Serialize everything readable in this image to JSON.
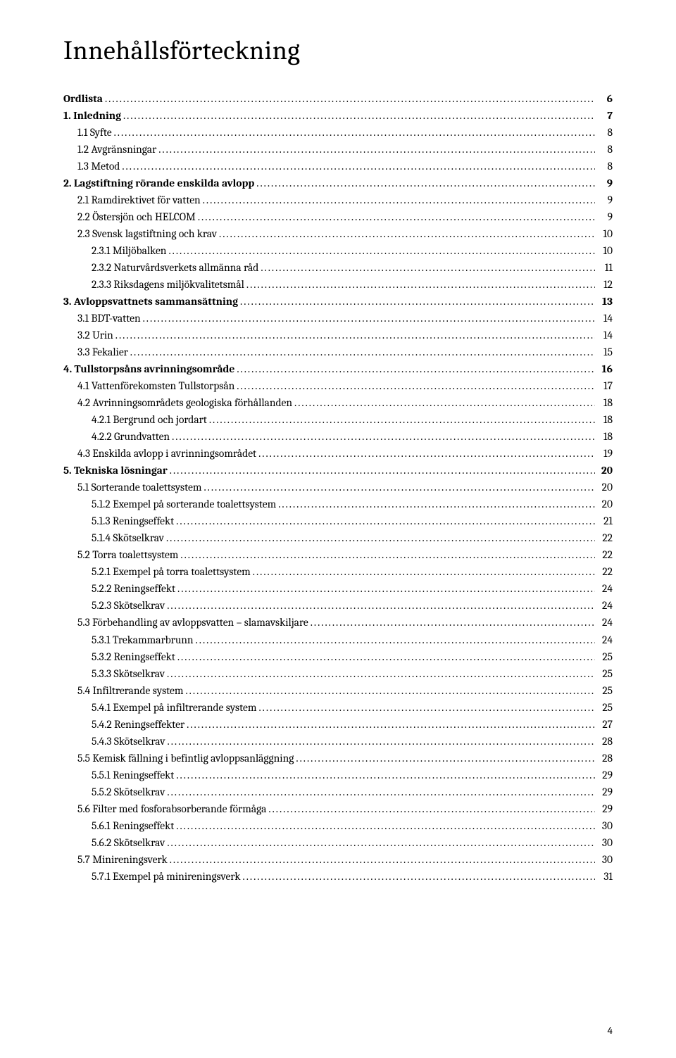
{
  "title": "Innehållsförteckning",
  "page_number": "4",
  "entries": [
    {
      "label": "Ordlista",
      "page": "6",
      "level": 0,
      "bold": true
    },
    {
      "label": "1. Inledning",
      "page": "7",
      "level": 0,
      "bold": true
    },
    {
      "label": "1.1 Syfte",
      "page": "8",
      "level": 1,
      "bold": false
    },
    {
      "label": "1.2 Avgränsningar",
      "page": "8",
      "level": 1,
      "bold": false
    },
    {
      "label": "1.3 Metod",
      "page": "8",
      "level": 1,
      "bold": false
    },
    {
      "label": "2. Lagstiftning rörande enskilda avlopp",
      "page": "9",
      "level": 0,
      "bold": true
    },
    {
      "label": "2.1 Ramdirektivet för vatten",
      "page": "9",
      "level": 1,
      "bold": false
    },
    {
      "label": "2.2 Östersjön och HELCOM",
      "page": "9",
      "level": 1,
      "bold": false
    },
    {
      "label": "2.3 Svensk lagstiftning och krav",
      "page": "10",
      "level": 1,
      "bold": false
    },
    {
      "label": "2.3.1 Miljöbalken",
      "page": "10",
      "level": 2,
      "bold": false
    },
    {
      "label": "2.3.2 Naturvårdsverkets allmänna råd",
      "page": "11",
      "level": 2,
      "bold": false
    },
    {
      "label": "2.3.3 Riksdagens miljökvalitetsmål",
      "page": "12",
      "level": 2,
      "bold": false
    },
    {
      "label": "3. Avloppsvattnets sammansättning",
      "page": "13",
      "level": 0,
      "bold": true
    },
    {
      "label": "3.1 BDT-vatten",
      "page": "14",
      "level": 1,
      "bold": false
    },
    {
      "label": "3.2 Urin",
      "page": "14",
      "level": 1,
      "bold": false
    },
    {
      "label": "3.3 Fekalier",
      "page": "15",
      "level": 1,
      "bold": false
    },
    {
      "label": "4. Tullstorpsåns avrinningsområde",
      "page": "16",
      "level": 0,
      "bold": true
    },
    {
      "label": "4.1 Vattenförekomsten Tullstorpsån",
      "page": "17",
      "level": 1,
      "bold": false
    },
    {
      "label": "4.2 Avrinningsområdets geologiska förhållanden",
      "page": "18",
      "level": 1,
      "bold": false
    },
    {
      "label": "4.2.1 Bergrund och jordart",
      "page": "18",
      "level": 2,
      "bold": false
    },
    {
      "label": "4.2.2 Grundvatten",
      "page": "18",
      "level": 2,
      "bold": false
    },
    {
      "label": "4.3 Enskilda avlopp i avrinningsområdet",
      "page": "19",
      "level": 1,
      "bold": false
    },
    {
      "label": "5. Tekniska lösningar",
      "page": "20",
      "level": 0,
      "bold": true
    },
    {
      "label": "5.1 Sorterande toalettsystem",
      "page": "20",
      "level": 1,
      "bold": false
    },
    {
      "label": "5.1.2 Exempel på sorterande toalettsystem",
      "page": "20",
      "level": 2,
      "bold": false
    },
    {
      "label": "5.1.3 Reningseffekt",
      "page": "21",
      "level": 2,
      "bold": false
    },
    {
      "label": "5.1.4 Skötselkrav",
      "page": "22",
      "level": 2,
      "bold": false
    },
    {
      "label": "5.2 Torra toalettsystem",
      "page": "22",
      "level": 1,
      "bold": false
    },
    {
      "label": "5.2.1 Exempel på torra toalettsystem",
      "page": "22",
      "level": 2,
      "bold": false
    },
    {
      "label": "5.2.2 Reningseffekt",
      "page": "24",
      "level": 2,
      "bold": false
    },
    {
      "label": "5.2.3 Skötselkrav",
      "page": "24",
      "level": 2,
      "bold": false
    },
    {
      "label": "5.3 Förbehandling av avloppsvatten – slamavskiljare",
      "page": "24",
      "level": 1,
      "bold": false
    },
    {
      "label": "5.3.1 Trekammarbrunn",
      "page": "24",
      "level": 2,
      "bold": false
    },
    {
      "label": "5.3.2 Reningseffekt",
      "page": "25",
      "level": 2,
      "bold": false
    },
    {
      "label": "5.3.3 Skötselkrav",
      "page": "25",
      "level": 2,
      "bold": false
    },
    {
      "label": "5.4 Infiltrerande system",
      "page": "25",
      "level": 1,
      "bold": false
    },
    {
      "label": "5.4.1 Exempel på infiltrerande system",
      "page": "25",
      "level": 2,
      "bold": false
    },
    {
      "label": "5.4.2 Reningseffekter",
      "page": "27",
      "level": 2,
      "bold": false
    },
    {
      "label": "5.4.3 Skötselkrav",
      "page": "28",
      "level": 2,
      "bold": false
    },
    {
      "label": "5.5 Kemisk fällning i befintlig avloppsanläggning",
      "page": "28",
      "level": 1,
      "bold": false
    },
    {
      "label": "5.5.1 Reningseffekt",
      "page": "29",
      "level": 2,
      "bold": false
    },
    {
      "label": "5.5.2 Skötselkrav",
      "page": "29",
      "level": 2,
      "bold": false
    },
    {
      "label": "5.6 Filter med fosforabsorberande förmåga",
      "page": "29",
      "level": 1,
      "bold": false
    },
    {
      "label": "5.6.1 Reningseffekt",
      "page": "30",
      "level": 2,
      "bold": false
    },
    {
      "label": "5.6.2 Skötselkrav",
      "page": "30",
      "level": 2,
      "bold": false
    },
    {
      "label": "5.7 Minireningsverk",
      "page": "30",
      "level": 1,
      "bold": false
    },
    {
      "label": "5.7.1 Exempel på minireningsverk",
      "page": "31",
      "level": 2,
      "bold": false
    }
  ]
}
